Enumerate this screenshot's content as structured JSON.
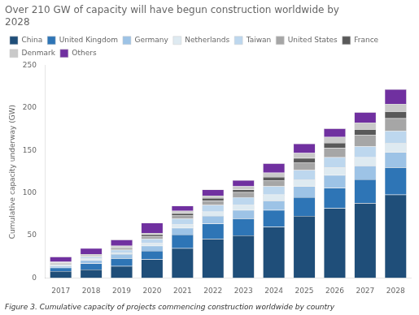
{
  "chart_data": {
    "type": "bar",
    "title": "Over 210 GW of capacity will have begun construction worldwide by\n2028",
    "ylabel": "Cumulative capacity underway (GW)",
    "caption": "Figure 3. Cumulative capacity of projects commencing construction worldwide by country",
    "categories": [
      "2017",
      "2018",
      "2019",
      "2020",
      "2021",
      "2022",
      "2023",
      "2024",
      "2025",
      "2026",
      "2027",
      "2028"
    ],
    "series": [
      {
        "name": "China",
        "color": "#1f4e79",
        "values": [
          8,
          10,
          14,
          22,
          35,
          46,
          50,
          60,
          73,
          82,
          88,
          98
        ]
      },
      {
        "name": "United Kingdom",
        "color": "#2e75b6",
        "values": [
          4,
          7,
          9,
          10,
          16,
          18,
          20,
          20,
          22,
          24,
          28,
          32
        ]
      },
      {
        "name": "Germany",
        "color": "#9dc3e6",
        "values": [
          2,
          4,
          5,
          6,
          8,
          9,
          10,
          11,
          13,
          15,
          16,
          18
        ]
      },
      {
        "name": "Netherlands",
        "color": "#deeaf1",
        "values": [
          1,
          2,
          2,
          3,
          4,
          5,
          6,
          7,
          8,
          9,
          10,
          11
        ]
      },
      {
        "name": "Taiwan",
        "color": "#bdd7ee",
        "values": [
          1,
          2,
          3,
          5,
          7,
          8,
          9,
          10,
          11,
          12,
          13,
          14
        ]
      },
      {
        "name": "United States",
        "color": "#a6a6a6",
        "values": [
          1,
          1,
          2,
          3,
          4,
          5,
          6,
          7,
          9,
          11,
          13,
          15
        ]
      },
      {
        "name": "France",
        "color": "#595959",
        "values": [
          1,
          1,
          1,
          2,
          2,
          3,
          3,
          4,
          5,
          6,
          7,
          8
        ]
      },
      {
        "name": "Denmark",
        "color": "#c9c9c9",
        "values": [
          1,
          1,
          2,
          2,
          3,
          3,
          4,
          5,
          6,
          7,
          8,
          9
        ]
      },
      {
        "name": "Others",
        "color": "#7030a0",
        "values": [
          6,
          7,
          7,
          12,
          6,
          7,
          7,
          11,
          11,
          10,
          12,
          17
        ]
      }
    ],
    "ylim": [
      0,
      250
    ],
    "yticks": [
      0,
      50,
      100,
      150,
      200,
      250
    ],
    "stacked": true,
    "grid": false,
    "legend": "upper left"
  }
}
